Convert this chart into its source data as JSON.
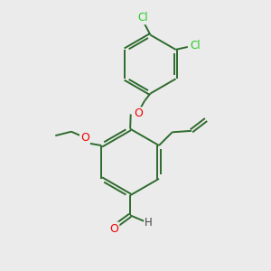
{
  "bg_color": "#ebebeb",
  "bond_color": "#2d6b2d",
  "atom_O_color": "#ee0000",
  "atom_Cl_color": "#22cc22",
  "lw": 1.4,
  "dbo": 0.055,
  "xlim": [
    0,
    10
  ],
  "ylim": [
    0,
    10
  ]
}
